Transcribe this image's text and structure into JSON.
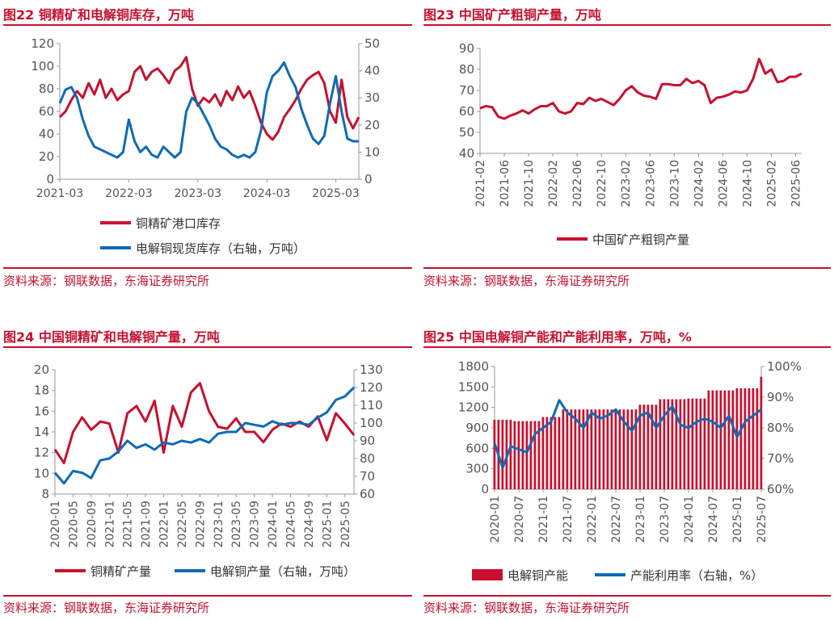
{
  "colors": {
    "red": "#c8102e",
    "blue": "#0f6bb5",
    "title": "#c8102e"
  },
  "panels": [
    {
      "title": "图22  铜精矿和电解铜库存，万吨",
      "source": "资料来源：钢联数据，东海证券研究所"
    },
    {
      "title": "图23  中国矿产粗铜产量，万吨",
      "source": "资料来源：钢联数据，东海证券研究所"
    },
    {
      "title": "图24  中国铜精矿和电解铜产量，万吨",
      "source": "资料来源：钢联数据，东海证券研究所"
    },
    {
      "title": "图25  中国电解铜产能和产能利用率，万吨，%",
      "source": "资料来源：钢联数据，东海证券研究所"
    }
  ],
  "chart_data": [
    {
      "type": "line",
      "x_ticks": [
        "2021-03",
        "2022-03",
        "2023-03",
        "2024-03",
        "2025-03"
      ],
      "y_left": {
        "min": 0,
        "max": 120,
        "ticks": [
          0,
          20,
          40,
          60,
          80,
          100,
          120
        ]
      },
      "y_right": {
        "min": 0,
        "max": 50,
        "ticks": [
          0,
          10,
          20,
          30,
          40,
          50
        ]
      },
      "legend_position": "bottom-stacked",
      "series": [
        {
          "name": "铜精矿港口库存",
          "axis": "left",
          "color": "#c8102e",
          "x": [
            "2021-03",
            "2021-04",
            "2021-05",
            "2021-06",
            "2021-07",
            "2021-08",
            "2021-09",
            "2021-10",
            "2021-11",
            "2021-12",
            "2022-01",
            "2022-02",
            "2022-03",
            "2022-04",
            "2022-05",
            "2022-06",
            "2022-07",
            "2022-08",
            "2022-09",
            "2022-10",
            "2022-11",
            "2022-12",
            "2023-01",
            "2023-02",
            "2023-03",
            "2023-04",
            "2023-05",
            "2023-06",
            "2023-07",
            "2023-08",
            "2023-09",
            "2023-10",
            "2023-11",
            "2023-12",
            "2024-01",
            "2024-02",
            "2024-03",
            "2024-04",
            "2024-05",
            "2024-06",
            "2024-07",
            "2024-08",
            "2024-09",
            "2024-10",
            "2024-11",
            "2024-12",
            "2025-01",
            "2025-02",
            "2025-03",
            "2025-04",
            "2025-05",
            "2025-06",
            "2025-07"
          ],
          "values": [
            55,
            60,
            70,
            78,
            72,
            85,
            75,
            88,
            72,
            80,
            70,
            75,
            78,
            95,
            100,
            88,
            95,
            98,
            92,
            85,
            96,
            100,
            108,
            80,
            65,
            72,
            68,
            75,
            65,
            78,
            70,
            82,
            72,
            78,
            65,
            50,
            40,
            35,
            42,
            55,
            62,
            70,
            80,
            88,
            92,
            95,
            85,
            60,
            50,
            88,
            55,
            45,
            55
          ]
        },
        {
          "name": "电解铜现货库存（右轴，万吨）",
          "axis": "right",
          "color": "#0f6bb5",
          "x": [
            "2021-03",
            "2021-04",
            "2021-05",
            "2021-06",
            "2021-07",
            "2021-08",
            "2021-09",
            "2021-10",
            "2021-11",
            "2021-12",
            "2022-01",
            "2022-02",
            "2022-03",
            "2022-04",
            "2022-05",
            "2022-06",
            "2022-07",
            "2022-08",
            "2022-09",
            "2022-10",
            "2022-11",
            "2022-12",
            "2023-01",
            "2023-02",
            "2023-03",
            "2023-04",
            "2023-05",
            "2023-06",
            "2023-07",
            "2023-08",
            "2023-09",
            "2023-10",
            "2023-11",
            "2023-12",
            "2024-01",
            "2024-02",
            "2024-03",
            "2024-04",
            "2024-05",
            "2024-06",
            "2024-07",
            "2024-08",
            "2024-09",
            "2024-10",
            "2024-11",
            "2024-12",
            "2025-01",
            "2025-02",
            "2025-03",
            "2025-04",
            "2025-05",
            "2025-06",
            "2025-07"
          ],
          "values": [
            28,
            33,
            34,
            30,
            22,
            16,
            12,
            11,
            10,
            9,
            8,
            10,
            22,
            14,
            10,
            12,
            9,
            8,
            12,
            10,
            8,
            10,
            25,
            30,
            28,
            24,
            20,
            15,
            12,
            11,
            9,
            8,
            9,
            8,
            10,
            18,
            32,
            38,
            40,
            43,
            38,
            34,
            26,
            20,
            15,
            13,
            16,
            28,
            38,
            25,
            15,
            14,
            14
          ]
        }
      ]
    },
    {
      "type": "line",
      "x_ticks": [
        "2021-02",
        "2021-06",
        "2021-10",
        "2022-02",
        "2022-06",
        "2022-10",
        "2023-02",
        "2023-06",
        "2023-10",
        "2024-02",
        "2024-06",
        "2024-10",
        "2025-02",
        "2025-06"
      ],
      "y_left": {
        "min": 40,
        "max": 90,
        "ticks": [
          40,
          50,
          60,
          70,
          80,
          90
        ]
      },
      "legend_position": "bottom",
      "series": [
        {
          "name": "中国矿产粗铜产量",
          "axis": "left",
          "color": "#c8102e",
          "x": [
            "2021-02",
            "2021-03",
            "2021-04",
            "2021-05",
            "2021-06",
            "2021-07",
            "2021-08",
            "2021-09",
            "2021-10",
            "2021-11",
            "2021-12",
            "2022-01",
            "2022-02",
            "2022-03",
            "2022-04",
            "2022-05",
            "2022-06",
            "2022-07",
            "2022-08",
            "2022-09",
            "2022-10",
            "2022-11",
            "2022-12",
            "2023-01",
            "2023-02",
            "2023-03",
            "2023-04",
            "2023-05",
            "2023-06",
            "2023-07",
            "2023-08",
            "2023-09",
            "2023-10",
            "2023-11",
            "2023-12",
            "2024-01",
            "2024-02",
            "2024-03",
            "2024-04",
            "2024-05",
            "2024-06",
            "2024-07",
            "2024-08",
            "2024-09",
            "2024-10",
            "2024-11",
            "2024-12",
            "2025-01",
            "2025-02",
            "2025-03",
            "2025-04",
            "2025-05",
            "2025-06",
            "2025-07"
          ],
          "values": [
            61.5,
            62.5,
            62,
            57.5,
            56.5,
            58,
            59,
            60.5,
            59,
            61,
            62.5,
            62.5,
            64,
            60,
            59,
            60,
            64,
            63.5,
            66.5,
            65,
            66,
            64.5,
            63,
            66,
            70,
            72,
            69,
            67.5,
            67,
            66,
            73,
            73,
            72.5,
            72.5,
            75.5,
            73.5,
            74.5,
            72.5,
            64,
            66.5,
            67,
            68,
            69.5,
            69,
            70,
            75.5,
            85,
            78,
            80,
            74,
            74.5,
            76.5,
            76.5,
            78
          ]
        }
      ]
    },
    {
      "type": "line",
      "x_ticks": [
        "2020-01",
        "2020-05",
        "2020-09",
        "2021-01",
        "2021-05",
        "2021-09",
        "2022-01",
        "2022-05",
        "2022-09",
        "2023-01",
        "2023-05",
        "2023-09",
        "2024-01",
        "2024-05",
        "2024-09",
        "2025-01",
        "2025-05"
      ],
      "y_left": {
        "min": 8,
        "max": 20,
        "ticks": [
          8,
          10,
          12,
          14,
          16,
          18,
          20
        ]
      },
      "y_right": {
        "min": 60,
        "max": 130,
        "ticks": [
          60,
          70,
          80,
          90,
          100,
          110,
          120,
          130
        ]
      },
      "legend_position": "bottom",
      "series": [
        {
          "name": "铜精矿产量",
          "axis": "left",
          "color": "#c8102e",
          "x": [
            "2020-01",
            "2020-03",
            "2020-05",
            "2020-07",
            "2020-09",
            "2020-11",
            "2021-01",
            "2021-03",
            "2021-05",
            "2021-07",
            "2021-09",
            "2021-11",
            "2022-01",
            "2022-03",
            "2022-05",
            "2022-07",
            "2022-09",
            "2022-11",
            "2023-01",
            "2023-03",
            "2023-05",
            "2023-07",
            "2023-09",
            "2023-11",
            "2024-01",
            "2024-03",
            "2024-05",
            "2024-07",
            "2024-09",
            "2024-11",
            "2025-01",
            "2025-03",
            "2025-05",
            "2025-07"
          ],
          "values": [
            12.3,
            11.0,
            14.0,
            15.4,
            14.2,
            15.0,
            14.8,
            12.0,
            15.8,
            16.5,
            15.0,
            17.0,
            12.0,
            16.5,
            14.5,
            17.8,
            18.7,
            16.0,
            14.5,
            14.3,
            15.3,
            14.0,
            14.0,
            13.0,
            14.2,
            14.8,
            14.5,
            15.0,
            14.5,
            15.5,
            13.2,
            15.8,
            14.8,
            13.7
          ]
        },
        {
          "name": "电解铜产量（右轴，万吨）",
          "axis": "right",
          "color": "#0f6bb5",
          "x": [
            "2020-01",
            "2020-03",
            "2020-05",
            "2020-07",
            "2020-09",
            "2020-11",
            "2021-01",
            "2021-03",
            "2021-05",
            "2021-07",
            "2021-09",
            "2021-11",
            "2022-01",
            "2022-03",
            "2022-05",
            "2022-07",
            "2022-09",
            "2022-11",
            "2023-01",
            "2023-03",
            "2023-05",
            "2023-07",
            "2023-09",
            "2023-11",
            "2024-01",
            "2024-03",
            "2024-05",
            "2024-07",
            "2024-09",
            "2024-11",
            "2025-01",
            "2025-03",
            "2025-05",
            "2025-07"
          ],
          "values": [
            72,
            66,
            73,
            72,
            69,
            79,
            80,
            84,
            90,
            86,
            88,
            85,
            89,
            88,
            90,
            89,
            91,
            89,
            94,
            95,
            95,
            100,
            99,
            98,
            101,
            99,
            100,
            100,
            99,
            103,
            106,
            113,
            115,
            120
          ]
        }
      ]
    },
    {
      "type": "bar+line",
      "x_ticks": [
        "2020-01",
        "2020-07",
        "2021-01",
        "2021-07",
        "2022-01",
        "2022-07",
        "2023-01",
        "2023-07",
        "2024-01",
        "2024-07",
        "2025-01",
        "2025-07"
      ],
      "y_left": {
        "min": 0,
        "max": 1800,
        "ticks": [
          0,
          300,
          600,
          900,
          1200,
          1500,
          1800
        ]
      },
      "y_right": {
        "min": 60,
        "max": 100,
        "ticks": [
          "60%",
          "70%",
          "80%",
          "90%",
          "100%"
        ]
      },
      "legend_position": "bottom",
      "series": [
        {
          "name": "电解铜产能",
          "type": "bar",
          "axis": "left",
          "color": "#c8102e",
          "x": [
            "2020-01",
            "2020-06",
            "2021-01",
            "2021-06",
            "2022-01",
            "2022-06",
            "2023-01",
            "2023-06",
            "2024-01",
            "2024-06",
            "2025-01",
            "2025-07"
          ],
          "values": [
            1020,
            1000,
            1060,
            1170,
            1170,
            1170,
            1240,
            1320,
            1330,
            1450,
            1480,
            1650
          ]
        },
        {
          "name": "产能利用率（右轴，%）",
          "type": "line",
          "axis": "right",
          "color": "#0f6bb5",
          "x": [
            "2020-01",
            "2020-03",
            "2020-05",
            "2020-07",
            "2020-09",
            "2020-11",
            "2021-01",
            "2021-03",
            "2021-05",
            "2021-07",
            "2021-09",
            "2021-11",
            "2022-01",
            "2022-03",
            "2022-05",
            "2022-07",
            "2022-09",
            "2022-11",
            "2023-01",
            "2023-03",
            "2023-05",
            "2023-07",
            "2023-09",
            "2023-11",
            "2024-01",
            "2024-03",
            "2024-05",
            "2024-07",
            "2024-09",
            "2024-11",
            "2025-01",
            "2025-03",
            "2025-05",
            "2025-07"
          ],
          "values": [
            75,
            67,
            74,
            73,
            72,
            78,
            80,
            82,
            89,
            85,
            83,
            80,
            85,
            83,
            84,
            86,
            82,
            79,
            84,
            85,
            80,
            84,
            87,
            81,
            80,
            82,
            83,
            82,
            80,
            84,
            77,
            82,
            84,
            86
          ]
        }
      ]
    }
  ]
}
